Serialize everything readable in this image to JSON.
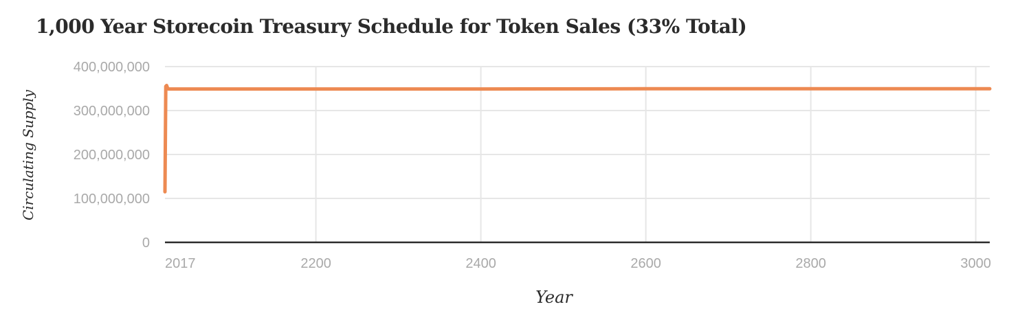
{
  "chart_data": {
    "type": "line",
    "title": "1,000 Year Storecoin Treasury Schedule for Token Sales (33% Total)",
    "xlabel": "Year",
    "ylabel": "Circulating Supply",
    "xlim": [
      2017,
      3017
    ],
    "ylim": [
      0,
      400000000
    ],
    "x_ticks": [
      2017,
      2200,
      2400,
      2600,
      2800,
      3000
    ],
    "x_tick_labels": [
      "2017",
      "2200",
      "2400",
      "2600",
      "2800",
      "3000"
    ],
    "y_ticks": [
      0,
      100000000,
      200000000,
      300000000,
      400000000
    ],
    "y_tick_labels": [
      "0",
      "100,000,000",
      "200,000,000",
      "300,000,000",
      "400,000,000"
    ],
    "grid": true,
    "series": [
      {
        "color": "#ed8a52",
        "x": [
          2017,
          2018,
          2019,
          2020,
          2021,
          2100,
          2200,
          2400,
          2600,
          2800,
          3000,
          3017
        ],
        "y": [
          115000000,
          355000000,
          357000000,
          352000000,
          349000000,
          349000000,
          349000000,
          349000000,
          349500000,
          349500000,
          349500000,
          349500000
        ]
      }
    ]
  }
}
